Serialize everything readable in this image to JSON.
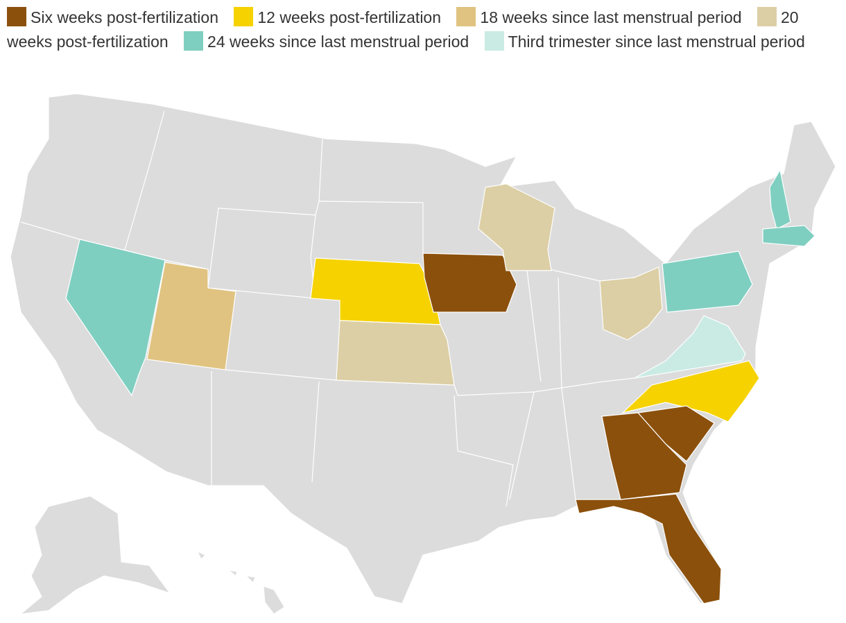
{
  "legend": {
    "items": [
      {
        "label": "Six weeks post-fertilization",
        "color": "#8b500c"
      },
      {
        "label": "12 weeks post-fertilization",
        "color": "#f5d200"
      },
      {
        "label": "18 weeks since last menstrual period",
        "color": "#e0c380"
      },
      {
        "label": "20 weeks post-fertilization",
        "color": "#dccfa5"
      },
      {
        "label": "24 weeks since last menstrual period",
        "color": "#7fcfc1"
      },
      {
        "label": "Third trimester since last menstrual period",
        "color": "#c9ebe4"
      }
    ]
  }
}
